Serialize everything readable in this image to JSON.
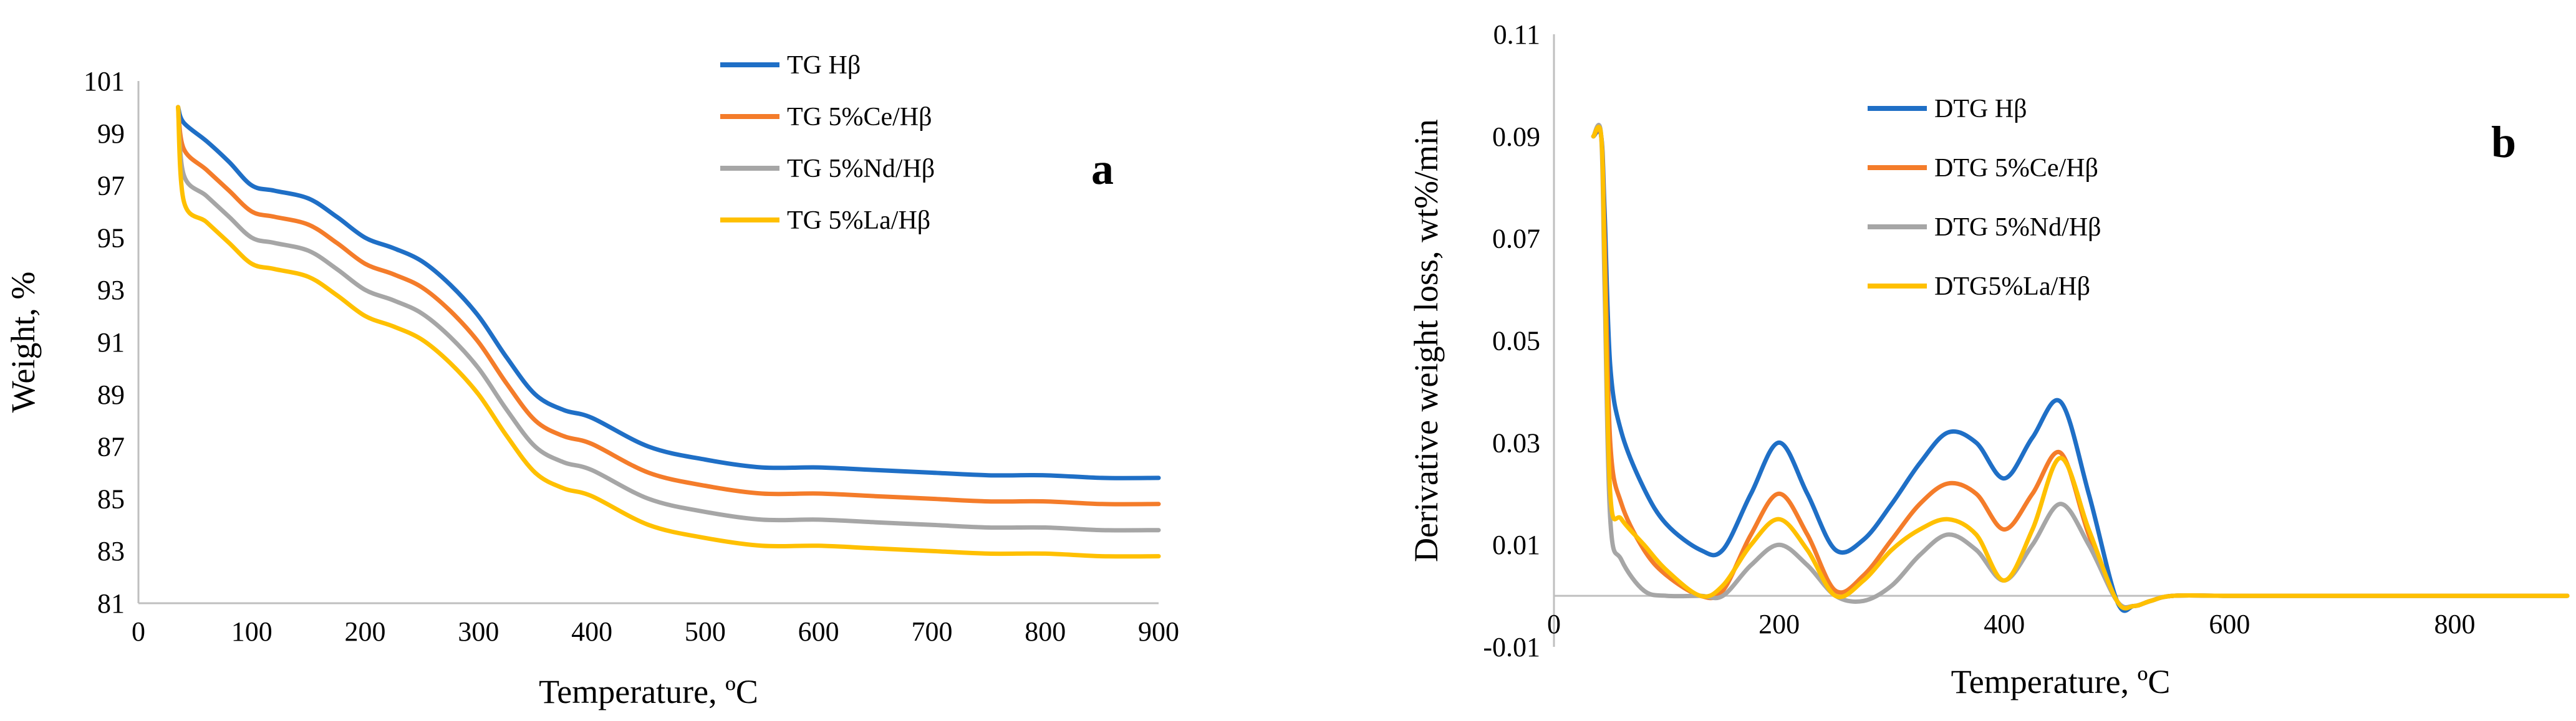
{
  "chart_data": [
    {
      "type": "line",
      "panel_label": "a",
      "xlabel": "Temperature, ºC",
      "ylabel": "Weight, %",
      "xlim": [
        0,
        900
      ],
      "ylim": [
        81,
        101
      ],
      "xticks": [
        0,
        100,
        200,
        300,
        400,
        500,
        600,
        700,
        800,
        900
      ],
      "yticks": [
        81,
        83,
        85,
        87,
        89,
        91,
        93,
        95,
        97,
        99,
        101
      ],
      "grid": false,
      "legend_position": "top-center",
      "series": [
        {
          "name": "TG Hβ",
          "color": "#1f6fc6",
          "x": [
            35,
            40,
            60,
            80,
            100,
            120,
            150,
            175,
            200,
            225,
            250,
            275,
            300,
            325,
            350,
            375,
            400,
            450,
            500,
            550,
            600,
            650,
            700,
            750,
            800,
            850,
            900
          ],
          "y": [
            100.0,
            99.4,
            98.7,
            97.9,
            97.0,
            96.8,
            96.5,
            95.8,
            95.0,
            94.6,
            94.1,
            93.2,
            92.0,
            90.4,
            89.0,
            88.4,
            88.1,
            87.0,
            86.5,
            86.2,
            86.2,
            86.1,
            86.0,
            85.9,
            85.9,
            85.8,
            85.8
          ]
        },
        {
          "name": "TG 5%Ce/Hβ",
          "color": "#f47c2a",
          "x": [
            35,
            40,
            60,
            80,
            100,
            120,
            150,
            175,
            200,
            225,
            250,
            275,
            300,
            325,
            350,
            375,
            400,
            450,
            500,
            550,
            600,
            650,
            700,
            750,
            800,
            850,
            900
          ],
          "y": [
            100.0,
            98.4,
            97.6,
            96.8,
            96.0,
            95.8,
            95.5,
            94.8,
            94.0,
            93.6,
            93.1,
            92.2,
            91.0,
            89.4,
            88.0,
            87.4,
            87.1,
            86.0,
            85.5,
            85.2,
            85.2,
            85.1,
            85.0,
            84.9,
            84.9,
            84.8,
            84.8
          ]
        },
        {
          "name": "TG 5%Nd/Hβ",
          "color": "#a6a6a6",
          "x": [
            35,
            40,
            60,
            80,
            100,
            120,
            150,
            175,
            200,
            225,
            250,
            275,
            300,
            325,
            350,
            375,
            400,
            450,
            500,
            550,
            600,
            650,
            700,
            750,
            800,
            850,
            900
          ],
          "y": [
            100.0,
            97.4,
            96.6,
            95.8,
            95.0,
            94.8,
            94.5,
            93.8,
            93.0,
            92.6,
            92.1,
            91.2,
            90.0,
            88.4,
            87.0,
            86.4,
            86.1,
            85.0,
            84.5,
            84.2,
            84.2,
            84.1,
            84.0,
            83.9,
            83.9,
            83.8,
            83.8
          ]
        },
        {
          "name": "TG 5%La/Hβ",
          "color": "#ffc000",
          "x": [
            35,
            40,
            60,
            80,
            100,
            120,
            150,
            175,
            200,
            225,
            250,
            275,
            300,
            325,
            350,
            375,
            400,
            450,
            500,
            550,
            600,
            650,
            700,
            750,
            800,
            850,
            900
          ],
          "y": [
            100.0,
            96.4,
            95.6,
            94.8,
            94.0,
            93.8,
            93.5,
            92.8,
            92.0,
            91.6,
            91.1,
            90.2,
            89.0,
            87.4,
            86.0,
            85.4,
            85.1,
            84.0,
            83.5,
            83.2,
            83.2,
            83.1,
            83.0,
            82.9,
            82.9,
            82.8,
            82.8
          ]
        }
      ]
    },
    {
      "type": "line",
      "panel_label": "b",
      "xlabel": "Temperature, ºC",
      "ylabel": "Derivative weight loss, wt%/min",
      "xlim": [
        0,
        900
      ],
      "ylim": [
        -0.01,
        0.11
      ],
      "xticks": [
        0,
        200,
        400,
        600,
        800
      ],
      "yticks": [
        -0.01,
        0.01,
        0.03,
        0.05,
        0.07,
        0.09,
        0.11
      ],
      "ytick_labels": [
        "-0.01",
        "0.01",
        "0.03",
        "0.05",
        "0.07",
        "0.09",
        "0.11"
      ],
      "grid": false,
      "legend_position": "top-center",
      "series": [
        {
          "name": "DTG Hβ",
          "color": "#1f6fc6",
          "x": [
            35,
            42,
            45,
            50,
            60,
            80,
            100,
            130,
            150,
            175,
            200,
            225,
            250,
            275,
            300,
            325,
            350,
            375,
            400,
            425,
            450,
            475,
            500,
            515,
            530,
            550,
            600,
            700,
            800,
            900
          ],
          "y": [
            0.09,
            0.09,
            0.075,
            0.045,
            0.032,
            0.021,
            0.014,
            0.009,
            0.009,
            0.02,
            0.03,
            0.02,
            0.009,
            0.011,
            0.018,
            0.026,
            0.032,
            0.03,
            0.023,
            0.031,
            0.038,
            0.02,
            -0.001,
            -0.002,
            -0.001,
            0.0,
            0.0,
            0.0,
            0.0,
            0.0
          ]
        },
        {
          "name": "DTG 5%Ce/Hβ",
          "color": "#f47c2a",
          "x": [
            35,
            42,
            45,
            50,
            60,
            80,
            100,
            130,
            150,
            175,
            200,
            225,
            250,
            275,
            300,
            325,
            350,
            375,
            400,
            425,
            450,
            475,
            500,
            515,
            530,
            550,
            600,
            700,
            800,
            900
          ],
          "y": [
            0.09,
            0.09,
            0.07,
            0.03,
            0.018,
            0.009,
            0.004,
            0.0,
            0.001,
            0.012,
            0.02,
            0.012,
            0.001,
            0.004,
            0.011,
            0.018,
            0.022,
            0.02,
            0.013,
            0.02,
            0.028,
            0.012,
            -0.001,
            -0.002,
            -0.001,
            0.0,
            0.0,
            0.0,
            0.0,
            0.0
          ]
        },
        {
          "name": "DTG 5%Nd/Hβ",
          "color": "#a6a6a6",
          "x": [
            35,
            42,
            45,
            50,
            60,
            80,
            100,
            130,
            150,
            175,
            200,
            225,
            250,
            275,
            300,
            325,
            350,
            375,
            400,
            425,
            450,
            475,
            500,
            515,
            530,
            550,
            600,
            700,
            800,
            900
          ],
          "y": [
            0.09,
            0.09,
            0.06,
            0.015,
            0.007,
            0.001,
            0.0,
            0.0,
            0.0,
            0.006,
            0.01,
            0.006,
            0.0,
            -0.001,
            0.002,
            0.008,
            0.012,
            0.009,
            0.003,
            0.01,
            0.018,
            0.01,
            -0.001,
            -0.002,
            -0.001,
            0.0,
            0.0,
            0.0,
            0.0,
            0.0
          ]
        },
        {
          "name": "DTG5%La/Hβ",
          "color": "#ffc000",
          "x": [
            35,
            42,
            45,
            50,
            60,
            80,
            100,
            130,
            150,
            175,
            200,
            225,
            250,
            275,
            300,
            325,
            350,
            375,
            400,
            425,
            450,
            475,
            500,
            515,
            530,
            550,
            600,
            700,
            800,
            900
          ],
          "y": [
            0.09,
            0.09,
            0.065,
            0.02,
            0.015,
            0.01,
            0.005,
            0.0,
            0.002,
            0.01,
            0.015,
            0.009,
            0.0,
            0.003,
            0.009,
            0.013,
            0.015,
            0.012,
            0.003,
            0.013,
            0.027,
            0.013,
            -0.001,
            -0.002,
            -0.001,
            0.0,
            0.0,
            0.0,
            0.0,
            0.0
          ]
        }
      ]
    }
  ]
}
